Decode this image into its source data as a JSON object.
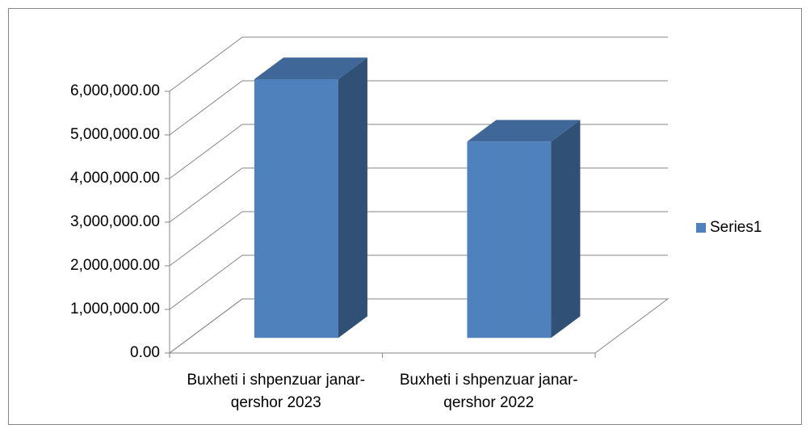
{
  "chart_data": {
    "type": "bar3d",
    "categories": [
      "Buxheti i shpenzuar janar-qershor 2023",
      "Buxheti i shpenzuar janar-qershor 2022"
    ],
    "series": [
      {
        "name": "Series1",
        "color": "#4f81bd",
        "values": [
          5930000,
          4500000
        ]
      }
    ],
    "ylim": [
      0,
      6000000
    ],
    "yticks": [
      {
        "value": 0,
        "label": "0.00"
      },
      {
        "value": 1000000,
        "label": "1,000,000.00"
      },
      {
        "value": 2000000,
        "label": "2,000,000.00"
      },
      {
        "value": 3000000,
        "label": "3,000,000.00"
      },
      {
        "value": 4000000,
        "label": "4,000,000.00"
      },
      {
        "value": 5000000,
        "label": "5,000,000.00"
      },
      {
        "value": 6000000,
        "label": "6,000,000.00"
      }
    ],
    "grid": true,
    "legend": "right"
  }
}
